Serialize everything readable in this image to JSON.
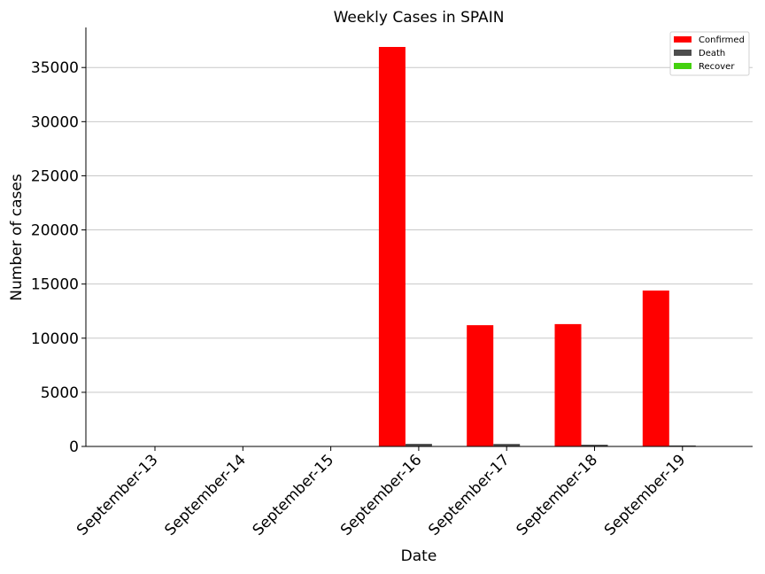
{
  "chart_data": {
    "type": "bar",
    "title": "Weekly Cases in SPAIN",
    "xlabel": "Date",
    "ylabel": "Number of cases",
    "categories": [
      "September-13",
      "September-14",
      "September-15",
      "September-16",
      "September-17",
      "September-18",
      "September-19"
    ],
    "series": [
      {
        "name": "Confirmed",
        "color": "#ff0000",
        "values": [
          0,
          0,
          0,
          36900,
          11200,
          11300,
          14400
        ]
      },
      {
        "name": "Death",
        "color": "#4d4d4d",
        "values": [
          0,
          0,
          0,
          240,
          230,
          160,
          90
        ]
      },
      {
        "name": "Recover",
        "color": "#44d10f",
        "values": [
          0,
          0,
          0,
          0,
          0,
          0,
          0
        ]
      }
    ],
    "ylim": [
      0,
      38700
    ],
    "yticks": [
      0,
      5000,
      10000,
      15000,
      20000,
      25000,
      30000,
      35000
    ],
    "grid": "horizontal",
    "legend_position": "top-right"
  }
}
